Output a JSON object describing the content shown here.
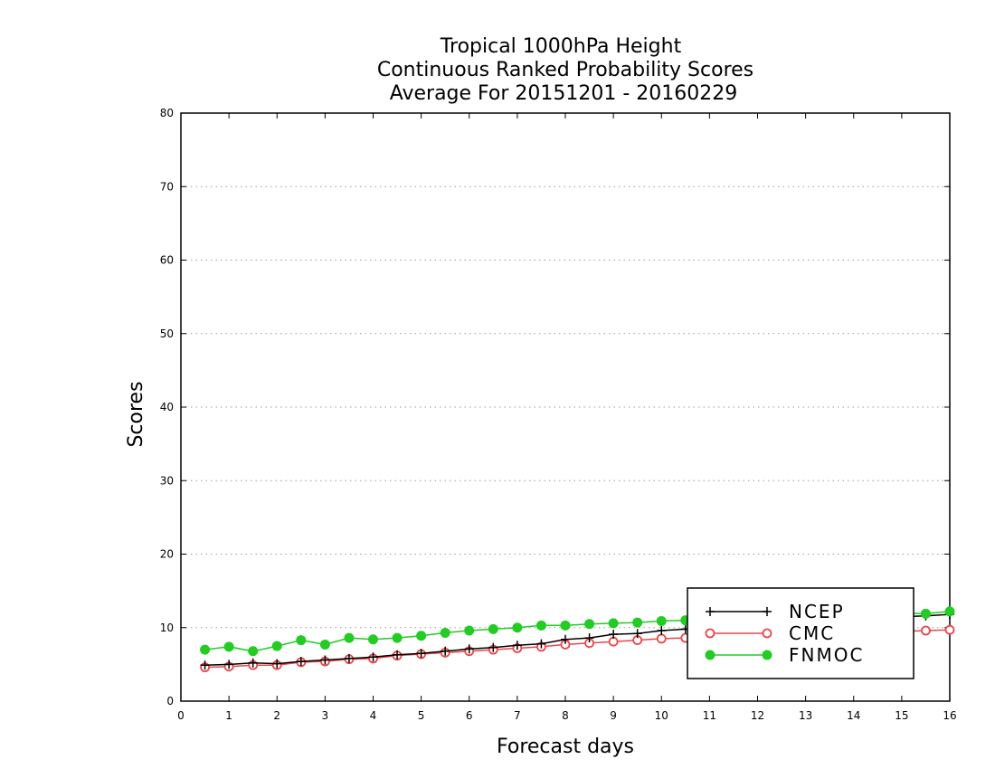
{
  "chart_data": {
    "type": "line",
    "title_lines": [
      "Tropical 1000hPa Height",
      "Continuous Ranked Probability Scores",
      "Average For 20151201 - 20160229"
    ],
    "xlabel": "Forecast days",
    "ylabel": "Scores",
    "xlim": [
      0,
      16
    ],
    "ylim": [
      0,
      80
    ],
    "x_ticks": [
      "0",
      "1",
      "2",
      "3",
      "4",
      "5",
      "6",
      "7",
      "8",
      "9",
      "10",
      "11",
      "12",
      "13",
      "14",
      "15",
      "16"
    ],
    "y_ticks": [
      "0",
      "10",
      "20",
      "30",
      "40",
      "50",
      "60",
      "70",
      "80"
    ],
    "grid": true,
    "legend_position": "bottom-right",
    "x": [
      0.5,
      1,
      1.5,
      2,
      2.5,
      3,
      3.5,
      4,
      4.5,
      5,
      5.5,
      6,
      6.5,
      7,
      7.5,
      8,
      8.5,
      9,
      9.5,
      10,
      10.5,
      11,
      11.5,
      12,
      12.5,
      13,
      13.5,
      14,
      14.5,
      15,
      15.5,
      16
    ],
    "series": [
      {
        "name": "NCEP",
        "color": "#000000",
        "marker": "plus",
        "values": [
          4.9,
          5.0,
          5.2,
          5.1,
          5.4,
          5.6,
          5.8,
          6.0,
          6.3,
          6.5,
          6.8,
          7.1,
          7.3,
          7.6,
          7.8,
          8.4,
          8.6,
          9.1,
          9.2,
          9.6,
          9.8,
          10.1,
          10.3,
          10.6,
          10.8,
          11.0,
          11.1,
          11.3,
          11.4,
          11.5,
          11.6,
          11.8
        ]
      },
      {
        "name": "CMC",
        "color": "#e8474a",
        "marker": "open-circle",
        "values": [
          4.6,
          4.7,
          4.9,
          4.9,
          5.3,
          5.4,
          5.7,
          5.8,
          6.2,
          6.4,
          6.6,
          6.8,
          7.0,
          7.2,
          7.4,
          7.7,
          7.9,
          8.1,
          8.3,
          8.5,
          8.6,
          8.8,
          8.9,
          9.0,
          9.1,
          9.2,
          9.3,
          9.4,
          9.4,
          9.5,
          9.6,
          9.7
        ]
      },
      {
        "name": "FNMOC",
        "color": "#22cc22",
        "marker": "filled-circle",
        "values": [
          7.0,
          7.4,
          6.8,
          7.5,
          8.3,
          7.7,
          8.6,
          8.4,
          8.6,
          8.9,
          9.3,
          9.6,
          9.8,
          10.0,
          10.3,
          10.3,
          10.5,
          10.6,
          10.7,
          10.9,
          11.0,
          11.2,
          11.3,
          11.4,
          11.5,
          11.6,
          11.7,
          11.8,
          11.9,
          12.0,
          11.9,
          12.2
        ]
      }
    ]
  }
}
